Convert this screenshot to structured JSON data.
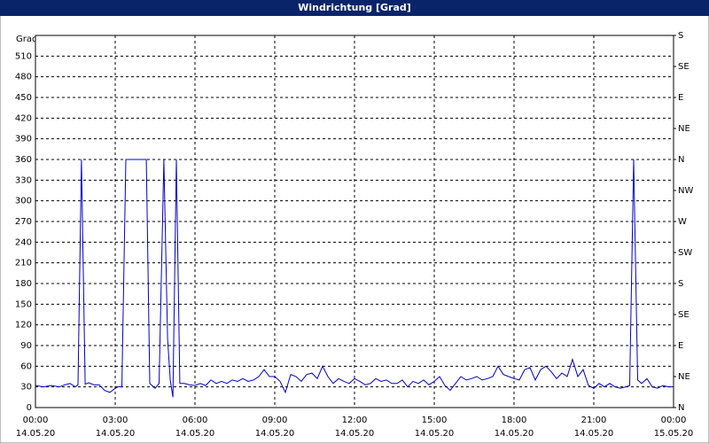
{
  "chart_data": {
    "type": "line",
    "title": "Windrichtung [Grad]",
    "ylabel": "Grad",
    "x": [
      0,
      0.3,
      0.6,
      0.9,
      1.1,
      1.3,
      1.5,
      1.6,
      1.73,
      1.87,
      2.0,
      2.2,
      2.4,
      2.6,
      2.8,
      3.0,
      3.1,
      3.25,
      3.4,
      4.17,
      4.3,
      4.5,
      4.65,
      4.83,
      4.97,
      5.07,
      5.17,
      5.3,
      5.43,
      5.6,
      5.8,
      6.0,
      6.2,
      6.4,
      6.6,
      6.8,
      7.0,
      7.2,
      7.4,
      7.6,
      7.8,
      8.0,
      8.2,
      8.4,
      8.6,
      8.8,
      9.0,
      9.2,
      9.4,
      9.6,
      9.8,
      10.0,
      10.2,
      10.4,
      10.6,
      10.8,
      11.0,
      11.2,
      11.4,
      11.6,
      11.8,
      12.0,
      12.2,
      12.4,
      12.6,
      12.8,
      13.0,
      13.2,
      13.4,
      13.6,
      13.8,
      14.0,
      14.2,
      14.4,
      14.6,
      14.8,
      15.0,
      15.2,
      15.4,
      15.6,
      15.8,
      16.0,
      16.2,
      16.4,
      16.6,
      16.8,
      17.0,
      17.2,
      17.4,
      17.6,
      17.8,
      18.0,
      18.2,
      18.4,
      18.6,
      18.8,
      19.0,
      19.2,
      19.4,
      19.6,
      19.8,
      20.0,
      20.2,
      20.4,
      20.6,
      20.8,
      21.0,
      21.2,
      21.4,
      21.6,
      21.8,
      22.0,
      22.2,
      22.35,
      22.5,
      22.65,
      22.8,
      23.0,
      23.2,
      23.4,
      23.6,
      23.8,
      24.0
    ],
    "series": [
      {
        "name": "Windrichtung",
        "color": "#0000c8",
        "values": [
          32,
          30,
          32,
          30,
          33,
          35,
          30,
          33,
          360,
          34,
          36,
          33,
          33,
          25,
          22,
          28,
          30,
          30,
          360,
          360,
          35,
          28,
          35,
          360,
          100,
          40,
          15,
          360,
          35,
          35,
          33,
          32,
          35,
          32,
          40,
          35,
          38,
          35,
          40,
          38,
          42,
          38,
          40,
          45,
          55,
          45,
          45,
          38,
          22,
          48,
          45,
          38,
          48,
          50,
          42,
          60,
          45,
          35,
          42,
          38,
          35,
          42,
          38,
          33,
          35,
          42,
          38,
          40,
          35,
          35,
          40,
          30,
          38,
          35,
          40,
          33,
          38,
          45,
          32,
          25,
          35,
          45,
          40,
          42,
          45,
          40,
          42,
          45,
          60,
          48,
          45,
          42,
          40,
          55,
          58,
          40,
          55,
          60,
          52,
          42,
          50,
          45,
          70,
          45,
          55,
          32,
          28,
          35,
          30,
          35,
          30,
          28,
          30,
          32,
          360,
          40,
          35,
          42,
          30,
          28,
          32,
          30,
          30
        ]
      }
    ],
    "xlim": [
      0,
      24
    ],
    "xticks": [
      {
        "value": 0,
        "label": "00:00",
        "sublabel": "14.05.20"
      },
      {
        "value": 3,
        "label": "03:00",
        "sublabel": "14.05.20"
      },
      {
        "value": 6,
        "label": "06:00",
        "sublabel": "14.05.20"
      },
      {
        "value": 9,
        "label": "09:00",
        "sublabel": "14.05.20"
      },
      {
        "value": 12,
        "label": "12:00",
        "sublabel": "14.05.20"
      },
      {
        "value": 15,
        "label": "15:00",
        "sublabel": "14.05.20"
      },
      {
        "value": 18,
        "label": "18:00",
        "sublabel": "14.05.20"
      },
      {
        "value": 21,
        "label": "21:00",
        "sublabel": "14.05.20"
      },
      {
        "value": 24,
        "label": "00:00",
        "sublabel": "15.05.20"
      }
    ],
    "ylim": [
      0,
      540
    ],
    "yticks": [
      0,
      30,
      60,
      90,
      120,
      150,
      180,
      210,
      240,
      270,
      300,
      330,
      360,
      390,
      420,
      450,
      480,
      510
    ],
    "y2lim": [
      0,
      540
    ],
    "y2ticks": [
      {
        "value": 0,
        "label": "N"
      },
      {
        "value": 45,
        "label": "NE"
      },
      {
        "value": 90,
        "label": "E"
      },
      {
        "value": 135,
        "label": "SE"
      },
      {
        "value": 180,
        "label": "S"
      },
      {
        "value": 225,
        "label": "SW"
      },
      {
        "value": 270,
        "label": "W"
      },
      {
        "value": 315,
        "label": "NW"
      },
      {
        "value": 360,
        "label": "N"
      },
      {
        "value": 405,
        "label": "NE"
      },
      {
        "value": 450,
        "label": "E"
      },
      {
        "value": 495,
        "label": "SE"
      },
      {
        "value": 540,
        "label": "S"
      }
    ],
    "grid": true
  }
}
